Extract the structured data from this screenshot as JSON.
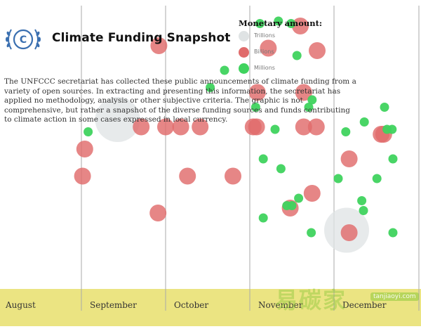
{
  "header": {
    "title": "Climate Funding Snapshot",
    "logo_icon": "unfccc-globe-laurel-logo"
  },
  "description": [
    "The UNFCCC secretariat has collected these public announcements of climate funding from a",
    "variety of open sources. In extracting and presenting this information, the secretariat has",
    "applied no methodology, analysis or other subjective criteria. The graphic is not",
    "comprehensive, but rather a snapshot of the diverse funding sources and funds contributing",
    "to climate action in some cases expressed in local currency."
  ],
  "legend": {
    "title": "Monetary amount:",
    "items": [
      {
        "label": "Trillions",
        "color": "#dfe3e4"
      },
      {
        "label": "Billions",
        "color": "#e06b6b"
      },
      {
        "label": "Millions",
        "color": "#3fd35e"
      }
    ]
  },
  "watermark": {
    "text": "易碳家",
    "sub": "tanjiaoyi.com"
  },
  "colors": {
    "band": "#e8df6c",
    "gridline": "#aaaaaa",
    "trillions": "#dfe3e4",
    "billions": "#e06b6b",
    "millions": "#3fd35e",
    "logo": "#3a6fb0"
  },
  "chart_data": {
    "type": "scatter",
    "x_axis": {
      "kind": "month-timeline",
      "labels": [
        "August",
        "September",
        "October",
        "November",
        "December"
      ]
    },
    "y_axis": "none (vertical position carries no labeled value)",
    "categories": [
      "Trillions",
      "Billions",
      "Millions"
    ],
    "points": [
      {
        "month": "September",
        "month_fraction": 0.43,
        "rank": 0.6,
        "category": "Trillions"
      },
      {
        "month": "December",
        "month_fraction": 0.15,
        "rank": 0.15,
        "category": "Trillions"
      },
      {
        "month": "September",
        "month_fraction": 0.04,
        "rank": 0.48,
        "category": "Billions"
      },
      {
        "month": "August",
        "month_fraction": 0.98,
        "rank": 0.37,
        "category": "Billions"
      },
      {
        "month": "September",
        "month_fraction": 0.71,
        "rank": 0.57,
        "category": "Billions"
      },
      {
        "month": "September",
        "month_fraction": 0.92,
        "rank": 0.9,
        "category": "Billions"
      },
      {
        "month": "October",
        "month_fraction": 0.0,
        "rank": 0.57,
        "category": "Billions"
      },
      {
        "month": "October",
        "month_fraction": 0.18,
        "rank": 0.57,
        "category": "Billions"
      },
      {
        "month": "October",
        "month_fraction": 0.41,
        "rank": 0.57,
        "category": "Billions"
      },
      {
        "month": "October",
        "month_fraction": 0.26,
        "rank": 0.37,
        "category": "Billions"
      },
      {
        "month": "September",
        "month_fraction": 0.91,
        "rank": 0.22,
        "category": "Billions"
      },
      {
        "month": "October",
        "month_fraction": 0.8,
        "rank": 0.37,
        "category": "Billions"
      },
      {
        "month": "November",
        "month_fraction": 0.04,
        "rank": 0.57,
        "category": "Billions"
      },
      {
        "month": "November",
        "month_fraction": 0.08,
        "rank": 0.57,
        "category": "Billions"
      },
      {
        "month": "November",
        "month_fraction": 0.09,
        "rank": 0.71,
        "category": "Billions"
      },
      {
        "month": "November",
        "month_fraction": 0.22,
        "rank": 0.89,
        "category": "Billions"
      },
      {
        "month": "November",
        "month_fraction": 0.64,
        "rank": 0.71,
        "category": "Billions"
      },
      {
        "month": "November",
        "month_fraction": 0.64,
        "rank": 0.57,
        "category": "Billions"
      },
      {
        "month": "November",
        "month_fraction": 0.79,
        "rank": 0.57,
        "category": "Billions"
      },
      {
        "month": "November",
        "month_fraction": 0.48,
        "rank": 0.24,
        "category": "Billions"
      },
      {
        "month": "November",
        "month_fraction": 0.74,
        "rank": 0.3,
        "category": "Billions"
      },
      {
        "month": "December",
        "month_fraction": 0.18,
        "rank": 0.44,
        "category": "Billions"
      },
      {
        "month": "December",
        "month_fraction": 0.18,
        "rank": 0.14,
        "category": "Billions"
      },
      {
        "month": "December",
        "month_fraction": 0.56,
        "rank": 0.54,
        "category": "Billions"
      },
      {
        "month": "December",
        "month_fraction": 0.59,
        "rank": 0.54,
        "category": "Billions"
      },
      {
        "month": "November",
        "month_fraction": 0.6,
        "rank": 0.98,
        "category": "Billions"
      },
      {
        "month": "November",
        "month_fraction": 0.8,
        "rank": 0.88,
        "category": "Billions"
      },
      {
        "month": "September",
        "month_fraction": 0.08,
        "rank": 0.55,
        "category": "Millions"
      },
      {
        "month": "October",
        "month_fraction": 0.53,
        "rank": 0.73,
        "category": "Millions"
      },
      {
        "month": "October",
        "month_fraction": 0.7,
        "rank": 0.8,
        "category": "Millions"
      },
      {
        "month": "November",
        "month_fraction": 0.12,
        "rank": 0.99,
        "category": "Millions"
      },
      {
        "month": "November",
        "month_fraction": 0.34,
        "rank": 1.0,
        "category": "Millions"
      },
      {
        "month": "November",
        "month_fraction": 0.49,
        "rank": 0.99,
        "category": "Millions"
      },
      {
        "month": "November",
        "month_fraction": 0.56,
        "rank": 0.86,
        "category": "Millions"
      },
      {
        "month": "November",
        "month_fraction": 0.74,
        "rank": 0.68,
        "category": "Millions"
      },
      {
        "month": "November",
        "month_fraction": 0.7,
        "rank": 0.65,
        "category": "Millions"
      },
      {
        "month": "November",
        "month_fraction": 0.07,
        "rank": 0.65,
        "category": "Millions"
      },
      {
        "month": "November",
        "month_fraction": 0.3,
        "rank": 0.56,
        "category": "Millions"
      },
      {
        "month": "November",
        "month_fraction": 0.16,
        "rank": 0.44,
        "category": "Millions"
      },
      {
        "month": "November",
        "month_fraction": 0.37,
        "rank": 0.4,
        "category": "Millions"
      },
      {
        "month": "November",
        "month_fraction": 0.44,
        "rank": 0.25,
        "category": "Millions"
      },
      {
        "month": "November",
        "month_fraction": 0.5,
        "rank": 0.25,
        "category": "Millions"
      },
      {
        "month": "November",
        "month_fraction": 0.16,
        "rank": 0.2,
        "category": "Millions"
      },
      {
        "month": "November",
        "month_fraction": 0.73,
        "rank": 0.14,
        "category": "Millions"
      },
      {
        "month": "December",
        "month_fraction": 0.14,
        "rank": 0.55,
        "category": "Millions"
      },
      {
        "month": "December",
        "month_fraction": 0.36,
        "rank": 0.59,
        "category": "Millions"
      },
      {
        "month": "December",
        "month_fraction": 0.6,
        "rank": 0.65,
        "category": "Millions"
      },
      {
        "month": "December",
        "month_fraction": 0.63,
        "rank": 0.56,
        "category": "Millions"
      },
      {
        "month": "December",
        "month_fraction": 0.7,
        "rank": 0.44,
        "category": "Millions"
      },
      {
        "month": "December",
        "month_fraction": 0.51,
        "rank": 0.36,
        "category": "Millions"
      },
      {
        "month": "December",
        "month_fraction": 0.33,
        "rank": 0.27,
        "category": "Millions"
      },
      {
        "month": "December",
        "month_fraction": 0.7,
        "rank": 0.14,
        "category": "Millions"
      },
      {
        "month": "December",
        "month_fraction": 0.69,
        "rank": 0.56,
        "category": "Millions"
      },
      {
        "month": "November",
        "month_fraction": 0.58,
        "rank": 0.28,
        "category": "Millions"
      },
      {
        "month": "December",
        "month_fraction": 0.35,
        "rank": 0.23,
        "category": "Millions"
      },
      {
        "month": "December",
        "month_fraction": 0.05,
        "rank": 0.36,
        "category": "Millions"
      }
    ]
  }
}
